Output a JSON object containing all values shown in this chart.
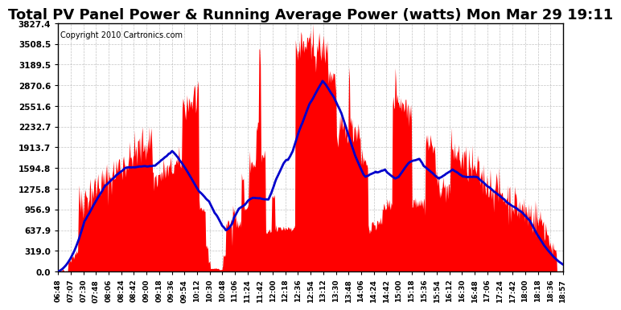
{
  "title": "Total PV Panel Power & Running Average Power (watts) Mon Mar 29 19:11",
  "copyright": "Copyright 2010 Cartronics.com",
  "y_ticks": [
    0.0,
    319.0,
    637.9,
    956.9,
    1275.8,
    1594.8,
    1913.7,
    2232.7,
    2551.6,
    2870.6,
    3189.5,
    3508.5,
    3827.4
  ],
  "y_max": 3827.4,
  "y_min": 0.0,
  "x_labels": [
    "06:48",
    "07:07",
    "07:30",
    "07:48",
    "08:06",
    "08:24",
    "08:42",
    "09:00",
    "09:18",
    "09:36",
    "09:54",
    "10:12",
    "10:30",
    "10:48",
    "11:06",
    "11:24",
    "11:42",
    "12:00",
    "12:18",
    "12:36",
    "12:54",
    "13:12",
    "13:30",
    "13:48",
    "14:06",
    "14:24",
    "14:42",
    "15:00",
    "15:18",
    "15:36",
    "15:54",
    "16:12",
    "16:30",
    "16:48",
    "17:06",
    "17:24",
    "17:42",
    "18:00",
    "18:18",
    "18:36",
    "18:57"
  ],
  "bar_color": "#FF0000",
  "avg_color": "#0000CC",
  "background_color": "#FFFFFF",
  "grid_color": "#AAAAAA",
  "title_fontsize": 13,
  "copyright_fontsize": 7
}
